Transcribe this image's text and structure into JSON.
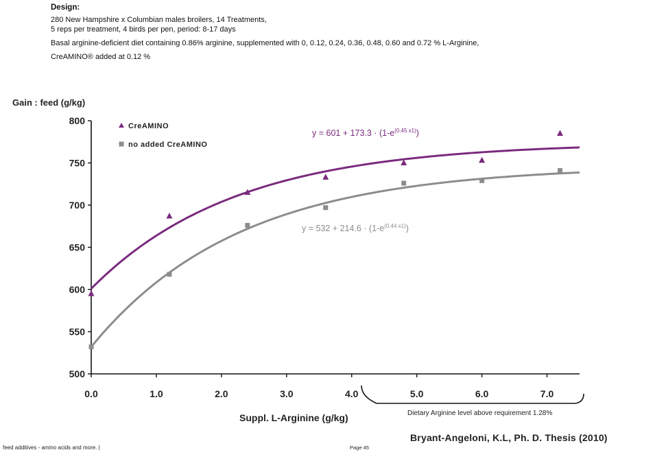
{
  "design": {
    "heading": "Design:",
    "lines": [
      "280 New Hampshire x Columbian males broilers, 14 Treatments,",
      "5 reps per treatment, 4 birds per pen, period: 8-17 days",
      "Basal arginine-deficient diet containing 0.86% arginine, supplemented with 0, 0.12, 0.24, 0.36, 0.48, 0.60 and 0.72 % L-Arginine,",
      "CreAMINO® added at 0.12 %"
    ]
  },
  "chart_data": {
    "type": "scatter",
    "ylabel": "Gain : feed (g/kg)",
    "xlabel": "Suppl. L-Arginine (g/kg)",
    "xlim": [
      0,
      7.5
    ],
    "ylim": [
      500,
      800
    ],
    "x_ticks": [
      "0.0",
      "1.0",
      "2.0",
      "3.0",
      "4.0",
      "5.0",
      "6.0",
      "7.0"
    ],
    "y_ticks": [
      "500",
      "550",
      "600",
      "650",
      "700",
      "750",
      "800"
    ],
    "grid": false,
    "legend_position": "top-left",
    "series": [
      {
        "name": "CreAMINO",
        "color": "#7b2a7e",
        "marker": "triangle",
        "x": [
          0.0,
          1.2,
          2.4,
          3.6,
          4.8,
          6.0,
          7.2
        ],
        "y": [
          595,
          687,
          715,
          733,
          750,
          753,
          785
        ],
        "fit": {
          "a": 601,
          "b": 173.3,
          "k": 0.45
        },
        "equation": {
          "prefix": "y = 601 + 173.3 · (1-e",
          "exponent": "(0.45 x1)",
          "suffix": ")"
        }
      },
      {
        "name": "no added CreAMINO",
        "color": "#8c8c8c",
        "marker": "square",
        "x": [
          0.0,
          1.2,
          2.4,
          3.6,
          4.8,
          6.0,
          7.2
        ],
        "y": [
          532,
          618,
          676,
          697,
          726,
          729,
          741
        ],
        "fit": {
          "a": 532,
          "b": 214.6,
          "k": 0.44
        },
        "equation": {
          "prefix": "y = 532 + 214.6 · (1-e",
          "exponent": "(0.44 x1)",
          "suffix": ")"
        }
      }
    ],
    "annotation": "Dietary Arginine level above requirement 1.28%"
  },
  "citation": "Bryant-Angeloni,  K.L, Ph. D. Thesis (2010)",
  "footer": {
    "left": "feed additives - amino acids and more. |",
    "page": "Page 45"
  }
}
